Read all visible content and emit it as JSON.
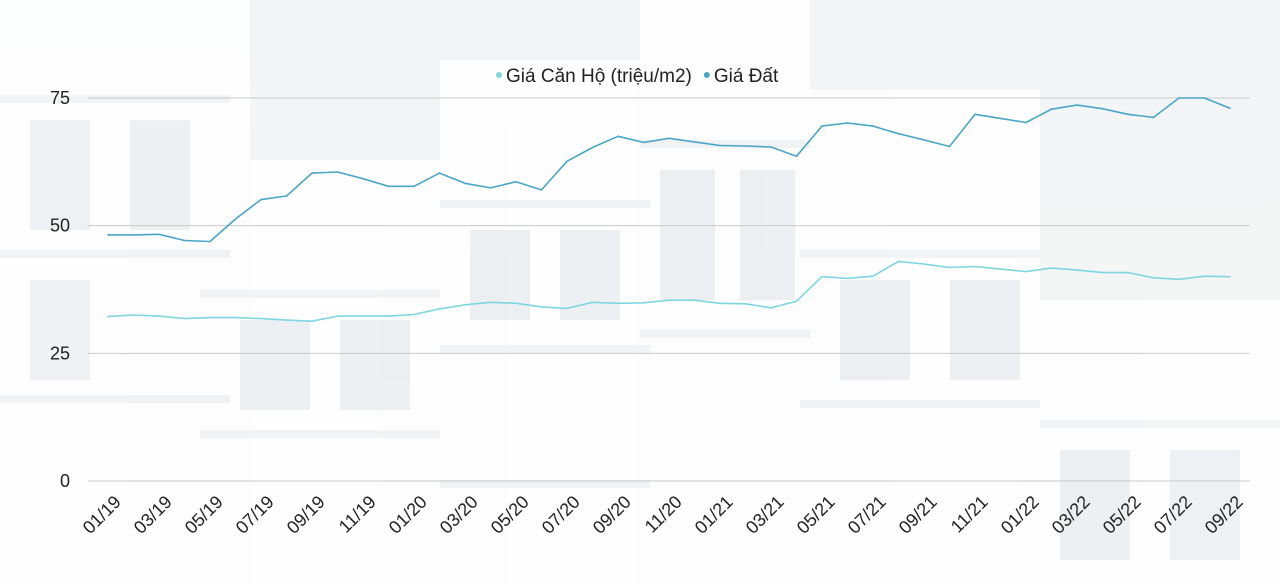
{
  "chart_data": {
    "type": "line",
    "title": "",
    "xlabel": "",
    "ylabel": "",
    "ylim": [
      0,
      75
    ],
    "yticks": [
      0,
      25,
      50,
      75
    ],
    "grid": true,
    "legend_position": "top-center",
    "x": [
      "01/19",
      "02/19",
      "03/19",
      "04/19",
      "05/19",
      "06/19",
      "07/19",
      "08/19",
      "09/19",
      "10/19",
      "11/19",
      "12/19",
      "01/20",
      "02/20",
      "03/20",
      "04/20",
      "05/20",
      "06/20",
      "07/20",
      "08/20",
      "09/20",
      "10/20",
      "11/20",
      "12/20",
      "01/21",
      "02/21",
      "03/21",
      "04/21",
      "05/21",
      "06/21",
      "07/21",
      "08/21",
      "09/21",
      "10/21",
      "11/21",
      "12/21",
      "01/22",
      "02/22",
      "03/22",
      "04/22",
      "05/22",
      "06/22",
      "07/22",
      "08/22",
      "09/22"
    ],
    "xtick_labels": [
      "01/19",
      "03/19",
      "05/19",
      "07/19",
      "09/19",
      "11/19",
      "01/20",
      "03/20",
      "05/20",
      "07/20",
      "09/20",
      "11/20",
      "01/21",
      "03/21",
      "05/21",
      "07/21",
      "09/21",
      "11/21",
      "01/22",
      "03/22",
      "05/22",
      "07/22",
      "09/22"
    ],
    "series": [
      {
        "name": "Giá Căn Hộ (triệu/m2)",
        "color": "#7fd6e0",
        "values": [
          32.2,
          32.5,
          32.3,
          31.8,
          32.0,
          32.0,
          31.8,
          31.5,
          31.3,
          32.3,
          32.3,
          32.3,
          32.6,
          33.7,
          34.5,
          35.0,
          34.8,
          34.1,
          33.8,
          35.0,
          34.8,
          34.9,
          35.4,
          35.4,
          34.8,
          34.7,
          33.9,
          35.2,
          40.0,
          39.7,
          40.1,
          43.0,
          42.5,
          41.8,
          42.0,
          41.5,
          41.0,
          41.7,
          41.3,
          40.8,
          40.8,
          39.8,
          39.5,
          40.1,
          40.0
        ]
      },
      {
        "name": "Giá Đất",
        "color": "#4aa6c8",
        "values": [
          48.2,
          48.2,
          48.3,
          47.1,
          46.9,
          51.3,
          55.1,
          55.8,
          60.3,
          60.5,
          59.2,
          57.7,
          57.7,
          60.3,
          58.3,
          57.4,
          58.6,
          57.0,
          62.6,
          65.3,
          67.5,
          66.3,
          67.1,
          66.4,
          65.7,
          65.6,
          65.4,
          63.6,
          69.5,
          70.1,
          69.5,
          68.0,
          66.8,
          65.5,
          71.8,
          71.0,
          70.2,
          72.8,
          73.6,
          72.9,
          71.8,
          71.2,
          75.0,
          75.0,
          73.0
        ]
      }
    ]
  }
}
